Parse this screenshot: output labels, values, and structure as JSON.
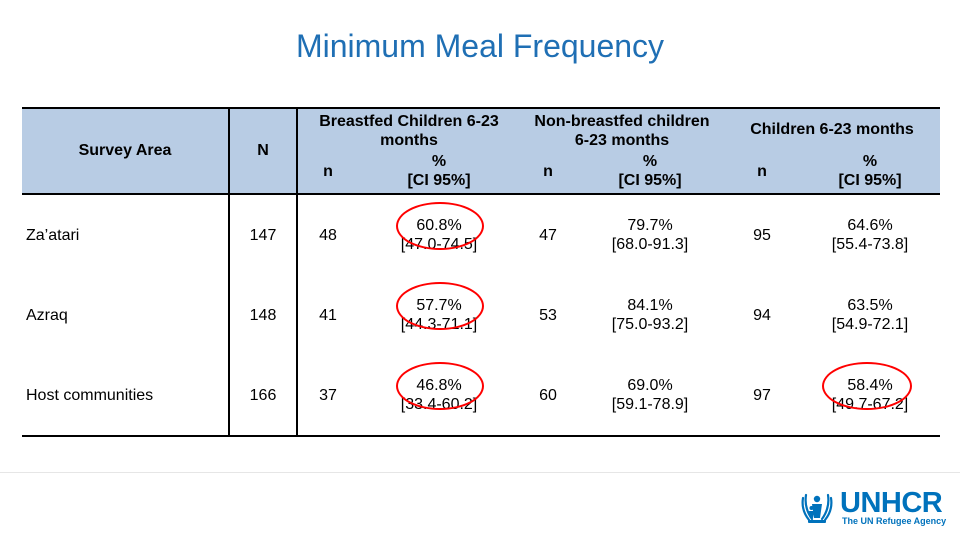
{
  "title": "Minimum Meal Frequency",
  "colors": {
    "title": "#1f6fb4",
    "header_bg": "#b8cce4",
    "highlight": "#ff0000",
    "brand": "#0072bc"
  },
  "table": {
    "headers": {
      "area": "Survey Area",
      "n_total": "N",
      "group1": [
        "Breastfed Children 6-23",
        "months"
      ],
      "group2": [
        "Non-breastfed children",
        "6-23 months"
      ],
      "group3": "Children 6-23 months",
      "sub_n": "n",
      "sub_pct": [
        "%",
        "[CI 95%]"
      ]
    },
    "rows": [
      {
        "area": "Za’atari",
        "N": "147",
        "bf_n": "48",
        "bf_pct": "60.8%",
        "bf_ci": "[47.0-74.5]",
        "nbf_n": "47",
        "nbf_pct": "79.7%",
        "nbf_ci": "[68.0-91.3]",
        "all_n": "95",
        "all_pct": "64.6%",
        "all_ci": "[55.4-73.8]"
      },
      {
        "area": "Azraq",
        "N": "148",
        "bf_n": "41",
        "bf_pct": "57.7%",
        "bf_ci": "[44.3-71.1]",
        "nbf_n": "53",
        "nbf_pct": "84.1%",
        "nbf_ci": "[75.0-93.2]",
        "all_n": "94",
        "all_pct": "63.5%",
        "all_ci": "[54.9-72.1]"
      },
      {
        "area": "Host communities",
        "N": "166",
        "bf_n": "37",
        "bf_pct": "46.8%",
        "bf_ci": "[33.4-60.2]",
        "nbf_n": "60",
        "nbf_pct": "69.0%",
        "nbf_ci": "[59.1-78.9]",
        "all_n": "97",
        "all_pct": "58.4%",
        "all_ci": "[49.7-67.2]"
      }
    ]
  },
  "logo": {
    "name": "UNHCR",
    "tagline": "The UN Refugee Agency",
    "icon": "unhcr-emblem-icon"
  }
}
